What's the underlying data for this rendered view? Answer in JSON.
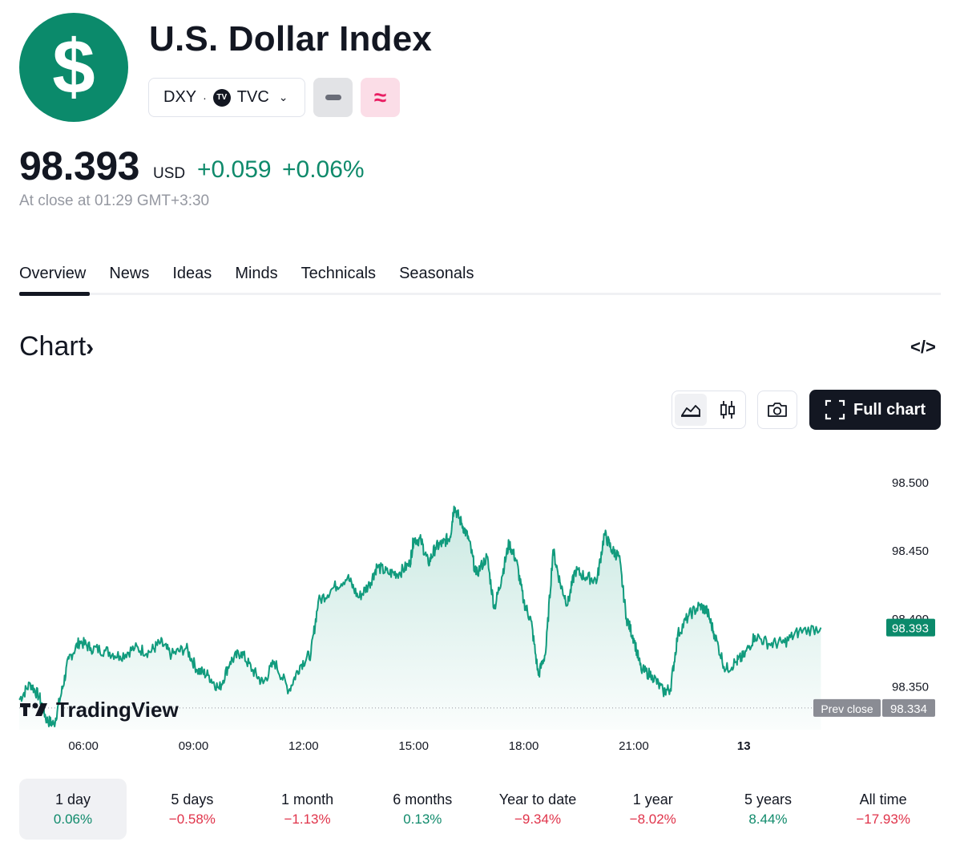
{
  "header": {
    "logo_symbol": "$",
    "title": "U.S. Dollar Index",
    "ticker": "DXY",
    "separator": "·",
    "exchange_badge": "TV",
    "exchange": "TVC",
    "pink_button_glyph": "≈"
  },
  "quote": {
    "price": "98.393",
    "currency": "USD",
    "change": "+0.059",
    "change_pct": "+0.06%",
    "close_time": "At close at 01:29 GMT+3:30"
  },
  "tabs": [
    "Overview",
    "News",
    "Ideas",
    "Minds",
    "Technicals",
    "Seasonals"
  ],
  "chart_section": {
    "heading": "Chart",
    "heading_arrow": "›",
    "embed_icon": "</>",
    "full_chart_label": "Full chart",
    "watermark": "TradingView"
  },
  "icons": {
    "line_chart": "area-chart-icon",
    "candles": "candlestick-icon",
    "camera": "camera-icon",
    "fullscreen": "fullscreen-icon"
  },
  "colors": {
    "brand_green": "#0b8a6b",
    "positive": "#0f8a6b",
    "negative": "#e0334a",
    "line": "#119b7d"
  },
  "chart_data": {
    "type": "area",
    "x_ticks": [
      "06:00",
      "09:00",
      "12:00",
      "15:00",
      "18:00",
      "21:00",
      "13"
    ],
    "y_ticks": [
      "98.500",
      "98.450",
      "98.400",
      "98.350"
    ],
    "ylim": [
      98.318,
      98.53
    ],
    "x_range_hours": [
      4.25,
      27.62
    ],
    "last_price_label": "98.393",
    "prev_close_label": "Prev close",
    "prev_close": "98.334",
    "points": [
      [
        4.25,
        98.34
      ],
      [
        4.55,
        98.352
      ],
      [
        4.8,
        98.342
      ],
      [
        5.0,
        98.325
      ],
      [
        5.2,
        98.322
      ],
      [
        5.4,
        98.345
      ],
      [
        5.6,
        98.37
      ],
      [
        5.9,
        98.383
      ],
      [
        6.2,
        98.378
      ],
      [
        6.6,
        98.376
      ],
      [
        7.0,
        98.372
      ],
      [
        7.4,
        98.378
      ],
      [
        7.8,
        98.375
      ],
      [
        8.1,
        98.382
      ],
      [
        8.4,
        98.373
      ],
      [
        8.8,
        98.378
      ],
      [
        9.1,
        98.362
      ],
      [
        9.4,
        98.358
      ],
      [
        9.7,
        98.348
      ],
      [
        10.0,
        98.368
      ],
      [
        10.3,
        98.375
      ],
      [
        10.6,
        98.362
      ],
      [
        10.9,
        98.352
      ],
      [
        11.2,
        98.368
      ],
      [
        11.6,
        98.347
      ],
      [
        11.9,
        98.365
      ],
      [
        12.2,
        98.374
      ],
      [
        12.4,
        98.412
      ],
      [
        12.8,
        98.422
      ],
      [
        13.2,
        98.43
      ],
      [
        13.5,
        98.415
      ],
      [
        13.8,
        98.425
      ],
      [
        14.0,
        98.438
      ],
      [
        14.3,
        98.433
      ],
      [
        14.6,
        98.433
      ],
      [
        14.9,
        98.44
      ],
      [
        15.0,
        98.458
      ],
      [
        15.2,
        98.457
      ],
      [
        15.4,
        98.44
      ],
      [
        15.6,
        98.452
      ],
      [
        15.8,
        98.455
      ],
      [
        16.0,
        98.46
      ],
      [
        16.1,
        98.482
      ],
      [
        16.3,
        98.47
      ],
      [
        16.5,
        98.458
      ],
      [
        16.7,
        98.432
      ],
      [
        17.0,
        98.445
      ],
      [
        17.2,
        98.407
      ],
      [
        17.4,
        98.43
      ],
      [
        17.6,
        98.455
      ],
      [
        17.8,
        98.442
      ],
      [
        18.0,
        98.412
      ],
      [
        18.2,
        98.398
      ],
      [
        18.4,
        98.358
      ],
      [
        18.6,
        98.375
      ],
      [
        18.8,
        98.45
      ],
      [
        19.0,
        98.425
      ],
      [
        19.2,
        98.41
      ],
      [
        19.4,
        98.435
      ],
      [
        19.7,
        98.43
      ],
      [
        20.0,
        98.428
      ],
      [
        20.2,
        98.462
      ],
      [
        20.4,
        98.45
      ],
      [
        20.6,
        98.445
      ],
      [
        20.8,
        98.4
      ],
      [
        21.0,
        98.385
      ],
      [
        21.2,
        98.362
      ],
      [
        21.5,
        98.358
      ],
      [
        21.8,
        98.346
      ],
      [
        22.0,
        98.348
      ],
      [
        22.2,
        98.388
      ],
      [
        22.5,
        98.402
      ],
      [
        22.8,
        98.409
      ],
      [
        23.0,
        98.405
      ],
      [
        23.2,
        98.388
      ],
      [
        23.5,
        98.362
      ],
      [
        23.8,
        98.368
      ],
      [
        24.0,
        98.372
      ],
      [
        24.3,
        98.387
      ],
      [
        24.7,
        98.381
      ],
      [
        25.1,
        98.382
      ],
      [
        25.5,
        98.39
      ],
      [
        26.1,
        98.393
      ]
    ]
  },
  "ranges": [
    {
      "label": "1 day",
      "value": "0.06%",
      "sign": "pos"
    },
    {
      "label": "5 days",
      "value": "−0.58%",
      "sign": "neg"
    },
    {
      "label": "1 month",
      "value": "−1.13%",
      "sign": "neg"
    },
    {
      "label": "6 months",
      "value": "0.13%",
      "sign": "pos"
    },
    {
      "label": "Year to date",
      "value": "−9.34%",
      "sign": "neg"
    },
    {
      "label": "1 year",
      "value": "−8.02%",
      "sign": "neg"
    },
    {
      "label": "5 years",
      "value": "8.44%",
      "sign": "pos"
    },
    {
      "label": "All time",
      "value": "−17.93%",
      "sign": "neg"
    }
  ]
}
